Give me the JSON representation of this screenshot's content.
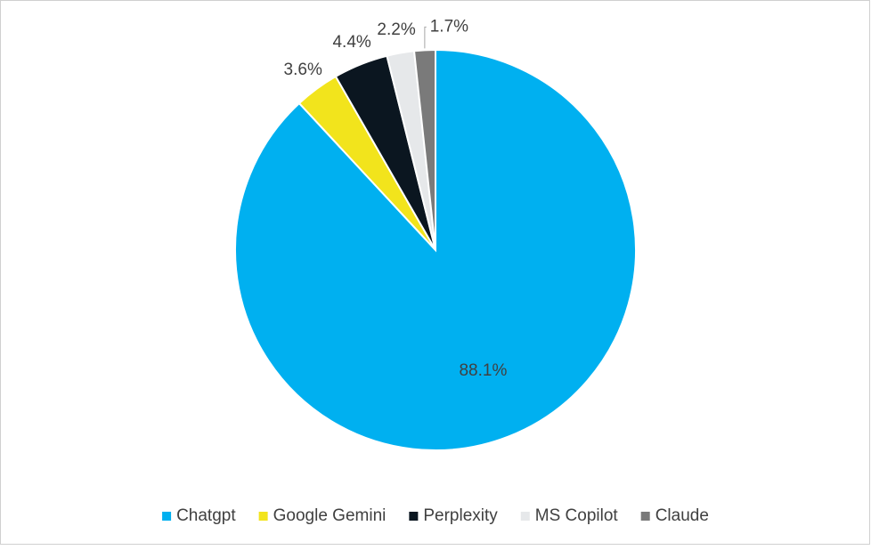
{
  "chart_data": {
    "type": "pie",
    "categories": [
      "Chatgpt",
      "Google Gemini",
      "Perplexity",
      "MS Copilot",
      "Claude"
    ],
    "values": [
      88.1,
      3.6,
      4.4,
      2.2,
      1.7
    ],
    "value_labels": [
      "88.1%",
      "3.6%",
      "4.4%",
      "2.2%",
      "1.7%"
    ],
    "colors": [
      "#00b0f0",
      "#f2e41c",
      "#0b1620",
      "#e6e8ea",
      "#7a7a7a"
    ],
    "legend": "bottom"
  }
}
